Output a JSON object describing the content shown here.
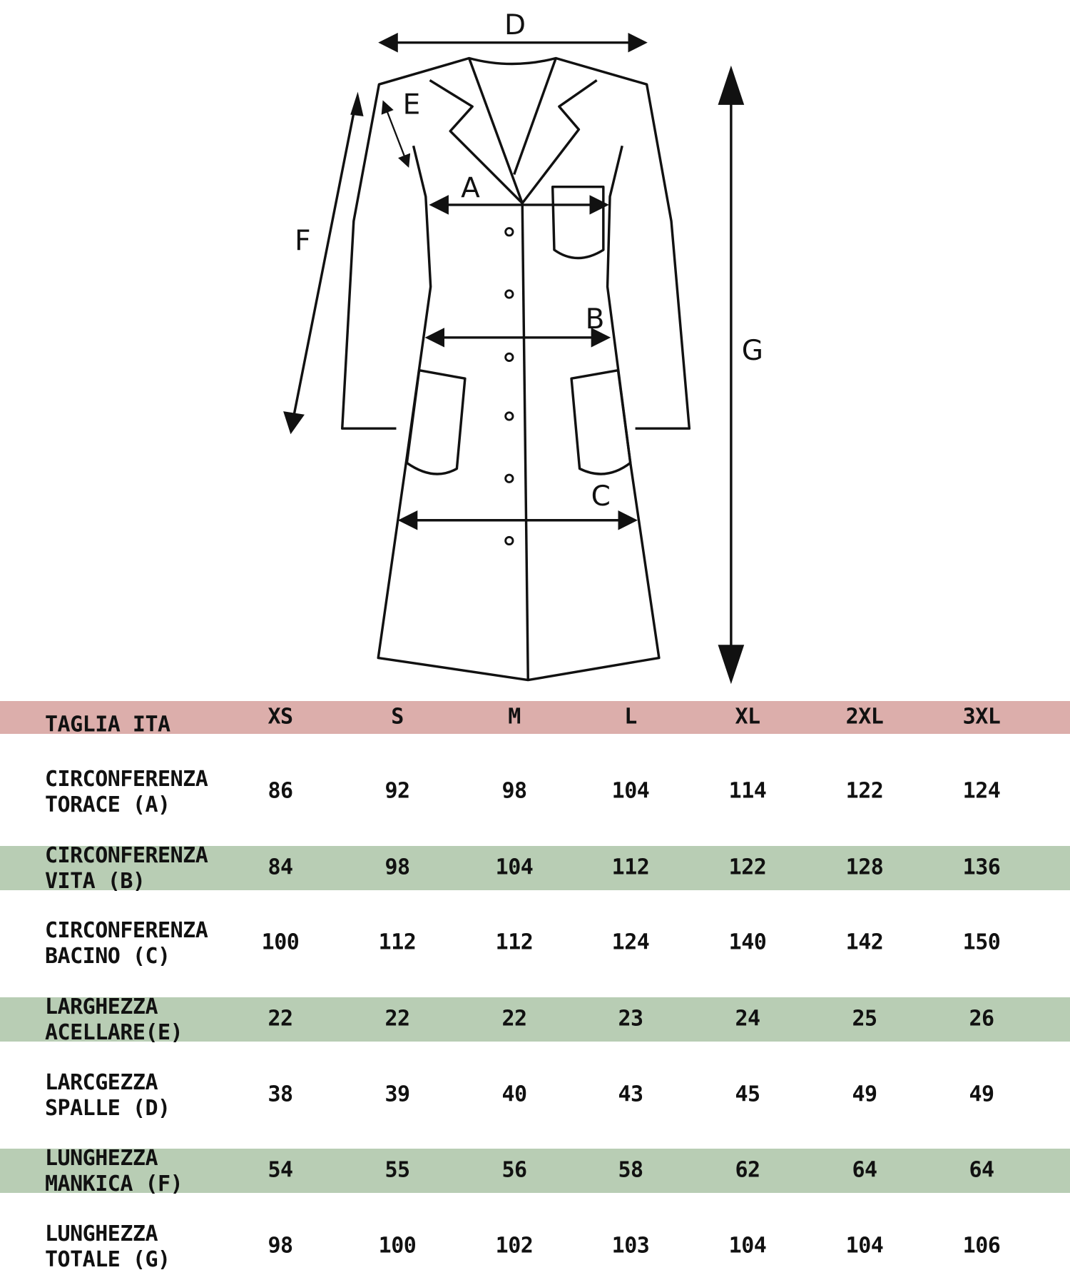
{
  "diagram": {
    "labels": {
      "A": "A",
      "B": "B",
      "C": "C",
      "D": "D",
      "E": "E",
      "F": "F",
      "G": "G"
    }
  },
  "table": {
    "header": {
      "label": "TAGLIA ITA",
      "sizes": [
        "XS",
        "S",
        "M",
        "L",
        "XL",
        "2XL",
        "3XL"
      ]
    },
    "rows": [
      {
        "line1": "CIRCONFERENZA",
        "line2": "TORACE (A)",
        "values": [
          "86",
          "92",
          "98",
          "104",
          "114",
          "122",
          "124"
        ],
        "highlight": false
      },
      {
        "line1": "CIRCONFERENZA",
        "line2": "VITA (B)",
        "values": [
          "84",
          "98",
          "104",
          "112",
          "122",
          "128",
          "136"
        ],
        "highlight": true
      },
      {
        "line1": "CIRCONFERENZA",
        "line2": "BACINO (C)",
        "values": [
          "100",
          "112",
          "112",
          "124",
          "140",
          "142",
          "150"
        ],
        "highlight": false
      },
      {
        "line1": "LARGHEZZA",
        "line2": "ACELLARE(E)",
        "values": [
          "22",
          "22",
          "22",
          "23",
          "24",
          "25",
          "26"
        ],
        "highlight": true
      },
      {
        "line1": "LARCGEZZA",
        "line2": "SPALLE (D)",
        "values": [
          "38",
          "39",
          "40",
          "43",
          "45",
          "49",
          "49"
        ],
        "highlight": false
      },
      {
        "line1": "LUNGHEZZA",
        "line2": "MANKICA (F)",
        "values": [
          "54",
          "55",
          "56",
          "58",
          "62",
          "64",
          "64"
        ],
        "highlight": true
      },
      {
        "line1": "LUNGHEZZA",
        "line2": "TOTALE (G)",
        "values": [
          "98",
          "100",
          "102",
          "103",
          "104",
          "104",
          "106"
        ],
        "highlight": false
      }
    ]
  },
  "colors": {
    "header_band": "#dcaeab",
    "highlight_band": "#b8cdb4"
  }
}
